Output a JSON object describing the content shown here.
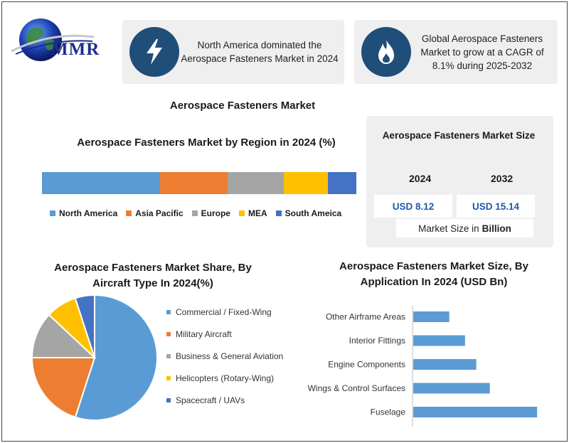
{
  "logo": {
    "text": "MMR",
    "icon": "globe-icon"
  },
  "cards": [
    {
      "icon": "lightning-icon",
      "text": "North America dominated the Aerospace Fasteners Market in 2024"
    },
    {
      "icon": "flame-icon",
      "text": "Global Aerospace Fasteners Market to grow at a CAGR of 8.1% during 2025-2032"
    }
  ],
  "main_title": "Aerospace Fasteners Market",
  "market_size": {
    "title": "Aerospace Fasteners Market Size",
    "years": [
      "2024",
      "2032"
    ],
    "values": [
      "USD 8.12",
      "USD 15.14"
    ],
    "unit_prefix": "Market Size in",
    "unit_bold": "Billion"
  },
  "colors": {
    "blue": "#5b9bd5",
    "orange": "#ed7d31",
    "gray": "#a5a5a5",
    "yellow": "#ffc000",
    "dark_blue": "#4472c4",
    "icon_circle": "#1f4e79"
  },
  "chart_data": [
    {
      "type": "bar",
      "orientation": "horizontal-stacked",
      "title": "Aerospace Fasteners Market by Region in 2024 (%)",
      "categories": [
        "North America",
        "Asia Pacific",
        "Europe",
        "MEA",
        "South Ameica"
      ],
      "values": [
        37.5,
        21.5,
        18,
        14,
        9
      ],
      "legend": "bottom"
    },
    {
      "type": "pie",
      "title": "Aerospace Fasteners Market Share, By Aircraft Type In 2024(%)",
      "categories": [
        "Commercial / Fixed-Wing",
        "Military Aircraft",
        "Business & General Aviation",
        "Helicopters (Rotary-Wing)",
        "Spacecraft / UAVs"
      ],
      "values": [
        55,
        20,
        12,
        8,
        5
      ],
      "legend": "right"
    },
    {
      "type": "bar",
      "orientation": "horizontal",
      "title": "Aerospace Fasteners Market Size, By Application In 2024 (USD Bn)",
      "categories": [
        "Other Airframe Areas",
        "Interior Fittings",
        "Engine Components",
        "Wings & Control Surfaces",
        "Fuselage"
      ],
      "values": [
        0.8,
        1.15,
        1.4,
        1.7,
        2.75
      ],
      "xlim": [
        0,
        3
      ]
    }
  ]
}
